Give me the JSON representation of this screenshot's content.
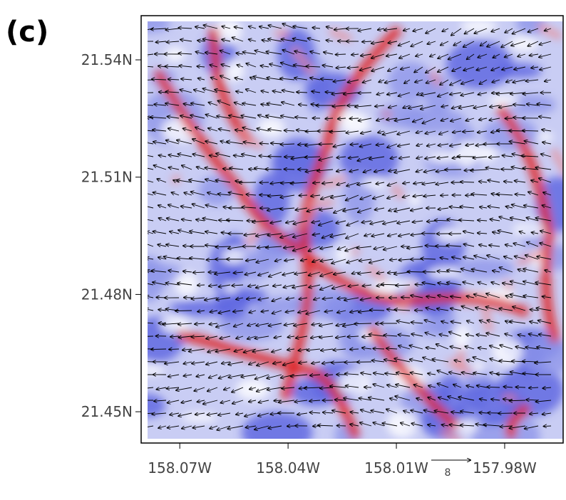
{
  "panel_label": "(c)",
  "chart_data": {
    "type": "vector_field",
    "xlim": [
      -158.0807,
      -157.9638
    ],
    "ylim": [
      21.442,
      21.5513
    ],
    "xticks": [
      {
        "value": -158.07,
        "label": "158.07W"
      },
      {
        "value": -158.04,
        "label": "158.04W"
      },
      {
        "value": -158.01,
        "label": "158.01W"
      },
      {
        "value": -157.98,
        "label": "157.98W"
      }
    ],
    "yticks": [
      {
        "value": 21.45,
        "label": "21.45N"
      },
      {
        "value": 21.48,
        "label": "21.48N"
      },
      {
        "value": 21.51,
        "label": "21.51N"
      },
      {
        "value": 21.54,
        "label": "21.54N"
      }
    ],
    "reference_vector": 8
  }
}
